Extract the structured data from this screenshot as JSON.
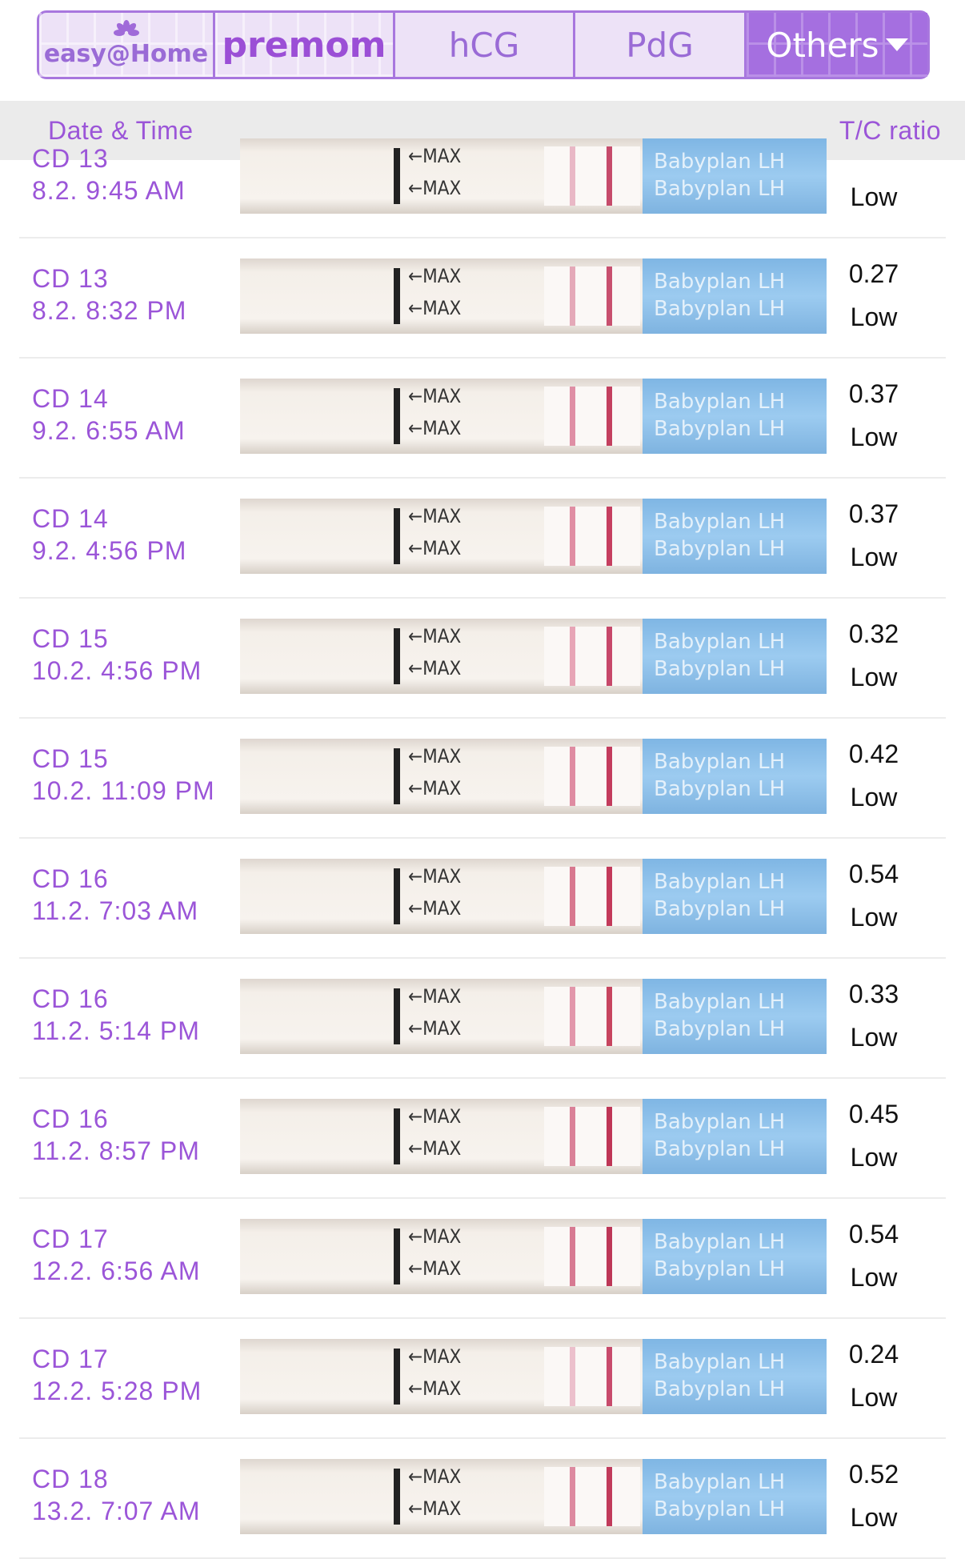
{
  "tabs": [
    {
      "id": "easy",
      "label": "easy@Home"
    },
    {
      "id": "premom",
      "label": "premom"
    },
    {
      "id": "hcg",
      "label": "hCG"
    },
    {
      "id": "pdg",
      "label": "PdG"
    },
    {
      "id": "others",
      "label": "Others"
    }
  ],
  "header": {
    "date_time": "Date & Time",
    "ratio": "T/C ratio"
  },
  "strip_text": {
    "max": "←MAX",
    "brand": "Babyplan LH"
  },
  "colors": {
    "accent": "#9b55d8",
    "tab_active": "#a56fe0",
    "strip_label": "#8cc0ea"
  },
  "entries": [
    {
      "cd": "CD 13",
      "time": "8.2. 9:45 AM",
      "ratio": "",
      "level": "Low",
      "t_line": "#e9b8c6",
      "c_line": "#c64b6b"
    },
    {
      "cd": "CD 13",
      "time": "8.2. 8:32 PM",
      "ratio": "0.27",
      "level": "Low",
      "t_line": "#e4a9b8",
      "c_line": "#c8506f"
    },
    {
      "cd": "CD 14",
      "time": "9.2. 6:55 AM",
      "ratio": "0.37",
      "level": "Low",
      "t_line": "#df8fa5",
      "c_line": "#c3405f"
    },
    {
      "cd": "CD 14",
      "time": "9.2. 4:56 PM",
      "ratio": "0.37",
      "level": "Low",
      "t_line": "#e08ea3",
      "c_line": "#c63f60"
    },
    {
      "cd": "CD 15",
      "time": "10.2. 4:56 PM",
      "ratio": "0.32",
      "level": "Low",
      "t_line": "#e7a5b6",
      "c_line": "#c7486a"
    },
    {
      "cd": "CD 15",
      "time": "10.2. 11:09 PM",
      "ratio": "0.42",
      "level": "Low",
      "t_line": "#df8ca2",
      "c_line": "#c33c5d"
    },
    {
      "cd": "CD 16",
      "time": "11.2. 7:03 AM",
      "ratio": "0.54",
      "level": "Low",
      "t_line": "#d8788f",
      "c_line": "#c33a5a"
    },
    {
      "cd": "CD 16",
      "time": "11.2. 5:14 PM",
      "ratio": "0.33",
      "level": "Low",
      "t_line": "#e297ab",
      "c_line": "#c7455f"
    },
    {
      "cd": "CD 16",
      "time": "11.2. 8:57 PM",
      "ratio": "0.45",
      "level": "Low",
      "t_line": "#da8198",
      "c_line": "#bf3656"
    },
    {
      "cd": "CD 17",
      "time": "12.2. 6:56 AM",
      "ratio": "0.54",
      "level": "Low",
      "t_line": "#d77a92",
      "c_line": "#bd3757"
    },
    {
      "cd": "CD 17",
      "time": "12.2. 5:28 PM",
      "ratio": "0.24",
      "level": "Low",
      "t_line": "#ecc0cc",
      "c_line": "#c84b6c"
    },
    {
      "cd": "CD 18",
      "time": "13.2. 7:07 AM",
      "ratio": "0.52",
      "level": "Low",
      "t_line": "#dd8aa0",
      "c_line": "#c13b5b"
    }
  ]
}
